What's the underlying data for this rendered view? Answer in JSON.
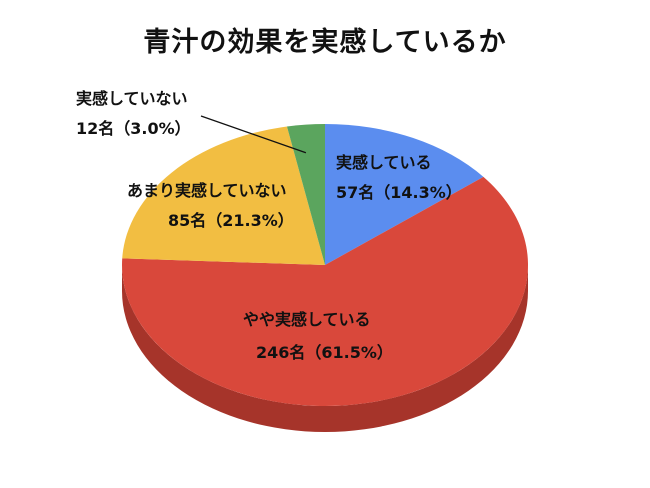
{
  "chart_data": {
    "type": "pie",
    "title": "青汁の効果を実感しているか",
    "categories": [
      "実感している",
      "やや実感している",
      "あまり実感していない",
      "実感していない"
    ],
    "values": [
      57,
      246,
      85,
      12
    ],
    "percents": [
      "14.3%",
      "61.5%",
      "21.3%",
      "3.0%"
    ],
    "labels": [
      {
        "name": "実感している",
        "value": "57名（14.3%）"
      },
      {
        "name": "やや実感している",
        "value": "246名（61.5%）"
      },
      {
        "name": "あまり実感していない",
        "value": "85名（21.3%）"
      },
      {
        "name": "実感していない",
        "value": "12名（3.0%）"
      }
    ],
    "colors": [
      "#5B8DEF",
      "#D9483B",
      "#F2BE42",
      "#5BA55E"
    ],
    "side_colors": [
      "#3E68B8",
      "#A6342A",
      "#C2962E",
      "#3E7A42"
    ],
    "style": "3d",
    "legend": "none"
  }
}
